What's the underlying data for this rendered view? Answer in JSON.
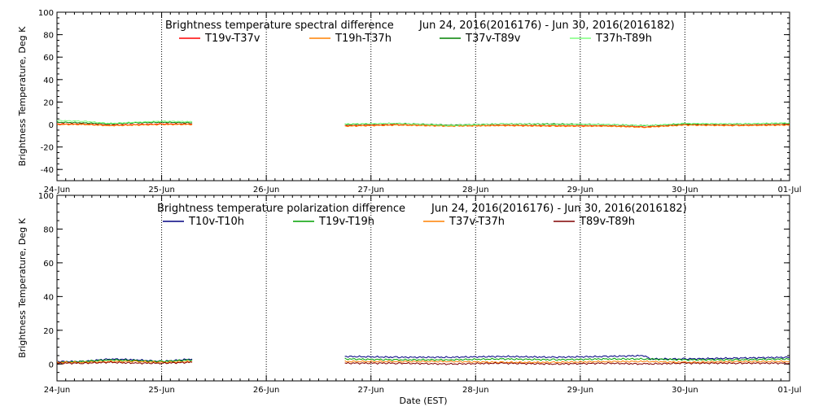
{
  "chart_data": [
    {
      "type": "line",
      "title": "Brightness temperature spectral difference",
      "date_range": "Jun 24, 2016(2016176) - Jun 30, 2016(2016182)",
      "ylabel": "Brightness Temperature, Deg K",
      "xlabel": "",
      "ylim": [
        -50,
        100
      ],
      "yticks": [
        -40,
        -20,
        0,
        20,
        40,
        60,
        80,
        100
      ],
      "xlim": [
        "2016-06-24",
        "2016-07-01"
      ],
      "xticks": [
        "24-Jun",
        "25-Jun",
        "26-Jun",
        "27-Jun",
        "28-Jun",
        "29-Jun",
        "30-Jun",
        "01-Jul"
      ],
      "grid": "vertical dotted at day boundaries",
      "legend_position": "top",
      "series": [
        {
          "name": "T19v-T37v",
          "color": "#ff0000",
          "segments": [
            {
              "x": [
                "2016-06-24 00:00",
                "2016-06-24 06:00",
                "2016-06-24 12:00",
                "2016-06-24 18:00",
                "2016-06-25 00:00",
                "2016-06-25 07:00"
              ],
              "y": [
                0.5,
                0.5,
                -0.5,
                0.0,
                0.5,
                0.5
              ]
            },
            {
              "x": [
                "2016-06-26 18:00",
                "2016-06-27 06:00",
                "2016-06-27 18:00",
                "2016-06-28 06:00",
                "2016-06-28 18:00",
                "2016-06-29 06:00",
                "2016-06-29 15:00",
                "2016-06-30 00:00",
                "2016-06-30 12:00",
                "2016-07-01 00:00"
              ],
              "y": [
                -1.0,
                0.0,
                -1.0,
                -0.5,
                -1.0,
                -1.0,
                -2.0,
                0.0,
                -0.5,
                0.0
              ]
            }
          ]
        },
        {
          "name": "T19h-T37h",
          "color": "#ff8000",
          "segments": [
            {
              "x": [
                "2016-06-24 00:00",
                "2016-06-24 06:00",
                "2016-06-24 12:00",
                "2016-06-24 18:00",
                "2016-06-25 00:00",
                "2016-06-25 07:00"
              ],
              "y": [
                0.0,
                0.0,
                -1.0,
                -0.5,
                0.0,
                0.0
              ]
            },
            {
              "x": [
                "2016-06-26 18:00",
                "2016-06-27 06:00",
                "2016-06-27 18:00",
                "2016-06-28 06:00",
                "2016-06-28 18:00",
                "2016-06-29 06:00",
                "2016-06-29 15:00",
                "2016-06-30 00:00",
                "2016-06-30 12:00",
                "2016-07-01 00:00"
              ],
              "y": [
                -1.5,
                -0.5,
                -1.5,
                -1.0,
                -1.5,
                -1.5,
                -2.5,
                -0.5,
                -1.0,
                -0.5
              ]
            }
          ]
        },
        {
          "name": "T37v-T89v",
          "color": "#008000",
          "segments": [
            {
              "x": [
                "2016-06-24 00:00",
                "2016-06-24 06:00",
                "2016-06-24 12:00",
                "2016-06-24 18:00",
                "2016-06-25 00:00",
                "2016-06-25 07:00"
              ],
              "y": [
                2.0,
                1.5,
                0.5,
                1.5,
                2.0,
                1.5
              ]
            },
            {
              "x": [
                "2016-06-26 18:00",
                "2016-06-27 06:00",
                "2016-06-27 18:00",
                "2016-06-28 06:00",
                "2016-06-28 18:00",
                "2016-06-29 06:00",
                "2016-06-29 15:00",
                "2016-06-30 00:00",
                "2016-06-30 12:00",
                "2016-07-01 00:00"
              ],
              "y": [
                0.0,
                1.0,
                -0.5,
                0.5,
                0.5,
                0.0,
                -1.0,
                0.5,
                0.5,
                1.0
              ]
            }
          ]
        },
        {
          "name": "T37h-T89h",
          "color": "#7fff7f",
          "segments": [
            {
              "x": [
                "2016-06-24 00:00",
                "2016-06-24 06:00",
                "2016-06-24 12:00",
                "2016-06-24 18:00",
                "2016-06-25 00:00",
                "2016-06-25 07:00"
              ],
              "y": [
                3.5,
                3.0,
                1.0,
                2.0,
                3.0,
                2.5
              ]
            },
            {
              "x": [
                "2016-06-26 18:00",
                "2016-06-27 06:00",
                "2016-06-27 18:00",
                "2016-06-28 06:00",
                "2016-06-28 18:00",
                "2016-06-29 06:00",
                "2016-06-29 15:00",
                "2016-06-30 00:00",
                "2016-06-30 12:00",
                "2016-07-01 00:00"
              ],
              "y": [
                0.5,
                1.0,
                -1.0,
                0.5,
                0.0,
                0.0,
                -1.0,
                1.0,
                0.5,
                1.5
              ]
            }
          ]
        }
      ]
    },
    {
      "type": "line",
      "title": "Brightness temperature polarization difference",
      "date_range": "Jun 24, 2016(2016176) - Jun 30, 2016(2016182)",
      "ylabel": "Brightness Temperature, Deg K",
      "xlabel": "Date (EST)",
      "ylim": [
        -10,
        100
      ],
      "yticks": [
        0,
        20,
        40,
        60,
        80,
        100
      ],
      "xlim": [
        "2016-06-24",
        "2016-07-01"
      ],
      "xticks": [
        "24-Jun",
        "25-Jun",
        "26-Jun",
        "27-Jun",
        "28-Jun",
        "29-Jun",
        "30-Jun",
        "01-Jul"
      ],
      "grid": "vertical dotted at day boundaries",
      "legend_position": "top",
      "series": [
        {
          "name": "T10v-T10h",
          "color": "#000080",
          "segments": [
            {
              "x": [
                "2016-06-24 00:00",
                "2016-06-24 06:00",
                "2016-06-24 12:00",
                "2016-06-24 18:00",
                "2016-06-25 00:00",
                "2016-06-25 07:00"
              ],
              "y": [
                1.5,
                1.5,
                3.0,
                2.5,
                1.5,
                3.0
              ]
            },
            {
              "x": [
                "2016-06-26 18:00",
                "2016-06-27 06:00",
                "2016-06-27 18:00",
                "2016-06-28 06:00",
                "2016-06-28 18:00",
                "2016-06-29 06:00",
                "2016-06-29 15:00",
                "2016-06-29 16:00",
                "2016-06-30 00:00",
                "2016-06-30 12:00",
                "2016-07-01 00:00"
              ],
              "y": [
                4.5,
                4.0,
                4.0,
                4.5,
                4.0,
                4.5,
                5.0,
                3.0,
                3.0,
                3.5,
                4.0
              ]
            }
          ]
        },
        {
          "name": "T19v-T19h",
          "color": "#00a000",
          "segments": [
            {
              "x": [
                "2016-06-24 00:00",
                "2016-06-24 06:00",
                "2016-06-24 12:00",
                "2016-06-24 18:00",
                "2016-06-25 00:00",
                "2016-06-25 07:00"
              ],
              "y": [
                1.0,
                1.5,
                2.5,
                2.0,
                1.5,
                2.5
              ]
            },
            {
              "x": [
                "2016-06-26 18:00",
                "2016-06-27 06:00",
                "2016-06-27 18:00",
                "2016-06-28 06:00",
                "2016-06-28 18:00",
                "2016-06-29 06:00",
                "2016-06-29 15:00",
                "2016-06-30 00:00",
                "2016-06-30 12:00",
                "2016-07-01 00:00"
              ],
              "y": [
                3.0,
                2.5,
                2.5,
                3.0,
                2.5,
                3.0,
                3.0,
                2.5,
                2.5,
                3.0
              ]
            }
          ]
        },
        {
          "name": "T37v-T37h",
          "color": "#ff8000",
          "segments": [
            {
              "x": [
                "2016-06-24 00:00",
                "2016-06-24 06:00",
                "2016-06-24 12:00",
                "2016-06-24 18:00",
                "2016-06-25 00:00",
                "2016-06-25 07:00"
              ],
              "y": [
                1.0,
                1.0,
                1.5,
                1.5,
                1.0,
                1.5
              ]
            },
            {
              "x": [
                "2016-06-26 18:00",
                "2016-06-27 06:00",
                "2016-06-27 18:00",
                "2016-06-28 06:00",
                "2016-06-28 18:00",
                "2016-06-29 06:00",
                "2016-06-29 15:00",
                "2016-06-30 00:00",
                "2016-06-30 12:00",
                "2016-07-01 00:00"
              ],
              "y": [
                1.5,
                1.5,
                1.5,
                1.0,
                1.0,
                1.5,
                1.5,
                1.0,
                1.5,
                1.5
              ]
            }
          ]
        },
        {
          "name": "T89v-T89h",
          "color": "#800000",
          "segments": [
            {
              "x": [
                "2016-06-24 00:00",
                "2016-06-24 06:00",
                "2016-06-24 12:00",
                "2016-06-24 18:00",
                "2016-06-25 00:00",
                "2016-06-25 07:00"
              ],
              "y": [
                0.5,
                0.5,
                1.0,
                0.5,
                0.5,
                1.0
              ]
            },
            {
              "x": [
                "2016-06-26 18:00",
                "2016-06-27 06:00",
                "2016-06-27 18:00",
                "2016-06-28 06:00",
                "2016-06-28 18:00",
                "2016-06-29 06:00",
                "2016-06-29 15:00",
                "2016-06-30 00:00",
                "2016-06-30 12:00",
                "2016-07-01 00:00"
              ],
              "y": [
                0.5,
                0.5,
                0.0,
                0.5,
                0.0,
                0.5,
                0.0,
                0.5,
                0.5,
                0.5
              ]
            }
          ]
        }
      ]
    }
  ]
}
